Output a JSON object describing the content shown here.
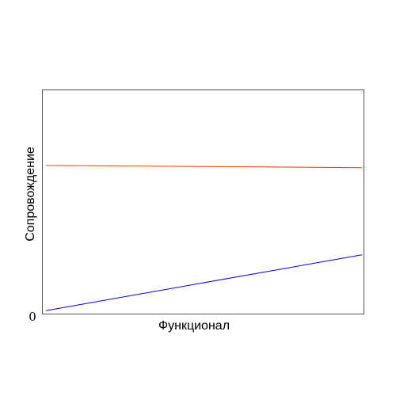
{
  "chart_data": {
    "type": "line",
    "xlabel": "Функционал",
    "ylabel": "Сопровождение",
    "y_tick_labels": [
      "0"
    ],
    "xlim": [
      0,
      1
    ],
    "ylim": [
      0,
      1
    ],
    "grid": false,
    "legend": "none",
    "series": [
      {
        "color": "#ff3300",
        "x": [
          0,
          1
        ],
        "y": [
          0.66,
          0.65
        ]
      },
      {
        "color": "#0000ff",
        "x": [
          0,
          1
        ],
        "y": [
          0.01,
          0.26
        ]
      }
    ]
  }
}
